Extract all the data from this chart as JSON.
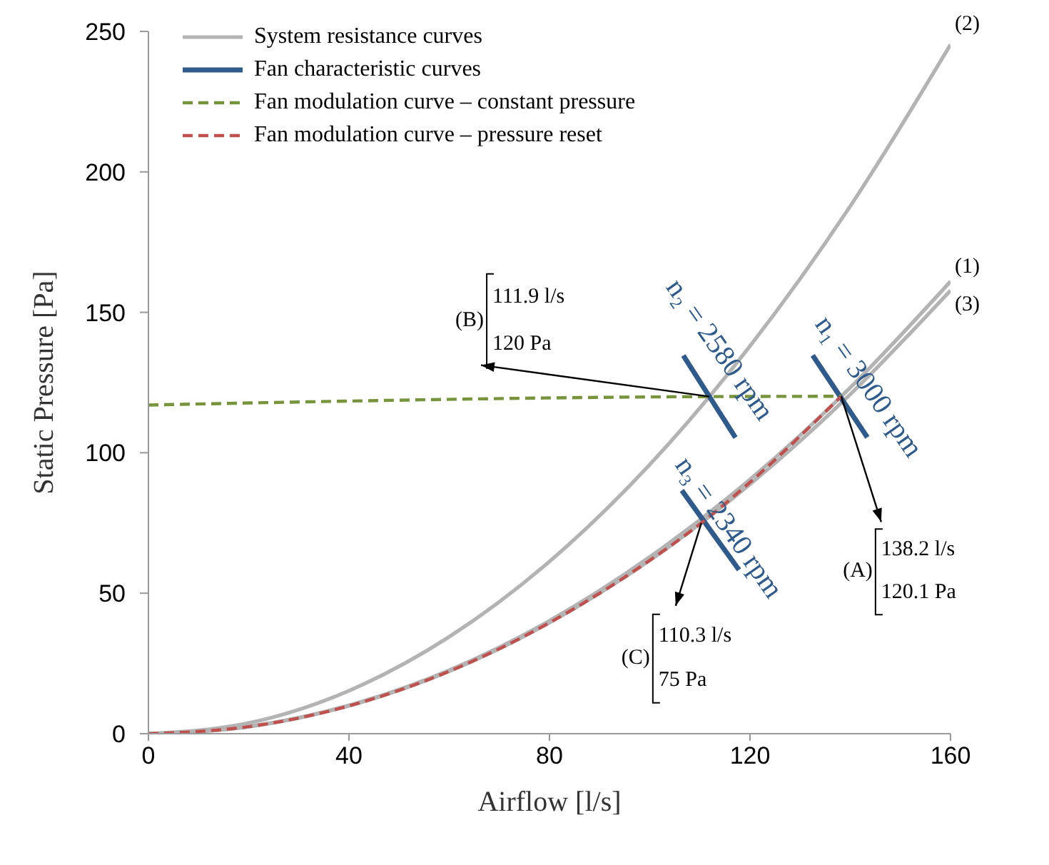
{
  "chart_data": {
    "type": "line",
    "xlabel": "Airflow [l/s]",
    "ylabel": "Static Pressure [Pa]",
    "xlim": [
      0,
      160
    ],
    "xticks": [
      0,
      40,
      80,
      120,
      160
    ],
    "ylim": [
      0,
      250
    ],
    "yticks": [
      0,
      50,
      100,
      150,
      200,
      250
    ],
    "legend": "top left",
    "marker": "none",
    "series": [
      {
        "name": "System resistance curves",
        "color": "#b3b3b3",
        "x": [
          0,
          20,
          40,
          60,
          80,
          100,
          120,
          140,
          160
        ],
        "values": [
          0,
          2.5,
          10.1,
          22.6,
          40.2,
          62.9,
          90.5,
          123.2,
          161.0
        ]
      },
      {
        "color": "#b3b3b3",
        "x": [
          0,
          20,
          40,
          60,
          80,
          100,
          120,
          140,
          160
        ],
        "values": [
          0,
          3.8,
          15.3,
          34.5,
          61.3,
          95.8,
          138.0,
          187.8,
          245.3
        ]
      },
      {
        "color": "#b3b3b3",
        "x": [
          0,
          20,
          40,
          60,
          80,
          100,
          120,
          140,
          160
        ],
        "values": [
          0,
          2.5,
          9.9,
          22.2,
          39.5,
          61.7,
          88.8,
          120.8,
          157.8
        ]
      },
      {
        "name": "Fan characteristic curves",
        "color": "#2e5a8c",
        "x": [
          132.5,
          143.4
        ],
        "values": [
          134.7,
          105.5
        ]
      },
      {
        "color": "#2e5a8c",
        "x": [
          106.7,
          117.1
        ],
        "values": [
          134.6,
          105.4
        ]
      },
      {
        "color": "#2e5a8c",
        "x": [
          106.4,
          117.8
        ],
        "values": [
          86.6,
          58.3
        ]
      },
      {
        "name": "Fan modulation curve – constant pressure",
        "color": "#77933c",
        "line_style": "dashed",
        "x": [
          0,
          111.9,
          138.2
        ],
        "values": [
          117,
          120,
          120.1
        ]
      },
      {
        "name": "Fan modulation curve – pressure reset",
        "color": "#c0504d",
        "line_style": "dashed",
        "x": [
          0,
          20,
          40,
          60,
          80,
          100,
          110.3,
          120,
          138.2
        ],
        "values": [
          0,
          2.5,
          9.9,
          22.2,
          39.5,
          61.7,
          75,
          89.5,
          120.1
        ]
      }
    ],
    "annotations": [
      {
        "text": "n₁ = 3000 rpm",
        "x": 138.2,
        "y": 120.1
      },
      {
        "text": "n₂ = 2580 rpm",
        "x": 111.9,
        "y": 120
      },
      {
        "text": "n₃ = 2340 rpm",
        "x": 110.3,
        "y": 75
      },
      {
        "text": "(A)\n138.2 l/s\n120.1 Pa",
        "x": 138.2,
        "y": 120.1
      },
      {
        "text": "(B)\n111.9 l/s\n120 Pa",
        "x": 111.9,
        "y": 120
      },
      {
        "text": "(C)\n110.3 l/s\n75 Pa",
        "x": 110.3,
        "y": 75
      },
      {
        "text": "(1)",
        "x": 160,
        "y": 161.0
      },
      {
        "text": "(2)",
        "x": 160,
        "y": 245.3
      },
      {
        "text": "(3)",
        "x": 160,
        "y": 157.8
      }
    ]
  }
}
